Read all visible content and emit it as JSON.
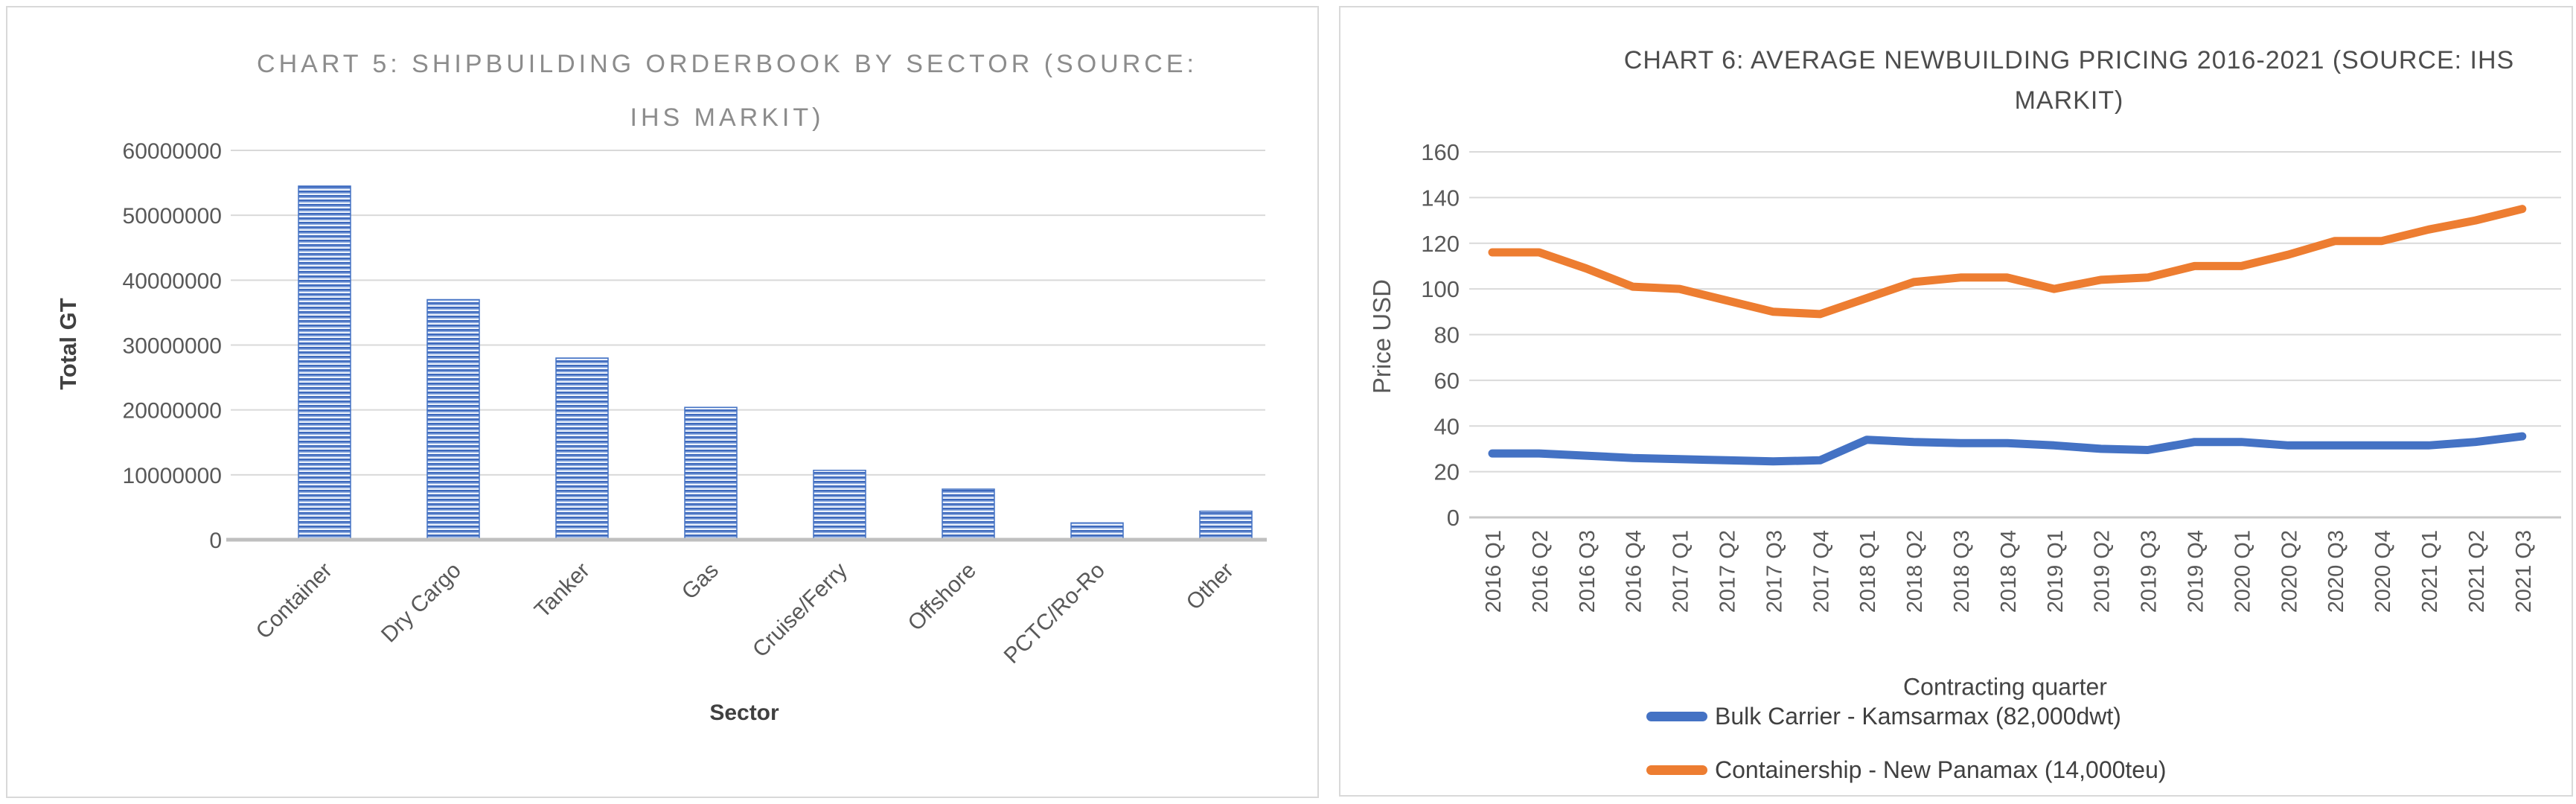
{
  "page": {
    "background": "#ffffff"
  },
  "colors": {
    "bar_fill_blue": "#4472C4",
    "series_blue": "#4472C4",
    "series_orange": "#ED7D31",
    "gridline": "#D9D9D9",
    "axis_line": "#BFBFBF",
    "tick_text": "#595959",
    "axis_title_text": "#404040",
    "chart5_title_text": "#8C8C8C",
    "chart6_title_text": "#4D4D4D",
    "panel_border": "#D9D9D9"
  },
  "chart_data": [
    {
      "id": "chart5",
      "type": "bar",
      "title": "CHART 5: SHIPBUILDING ORDERBOOK BY SECTOR (SOURCE: IHS MARKIT)",
      "title_lines": [
        "CHART 5: SHIPBUILDING ORDERBOOK BY SECTOR (SOURCE:",
        "IHS MARKIT)"
      ],
      "xlabel": "Sector",
      "ylabel": "Total GT",
      "categories": [
        "Container",
        "Dry Cargo",
        "Tanker",
        "Gas",
        "Cruise/Ferry",
        "Offshore",
        "PCTC/Ro-Ro",
        "Other"
      ],
      "values": [
        54500000,
        37000000,
        28000000,
        20400000,
        10700000,
        7800000,
        2600000,
        4400000
      ],
      "ylim": [
        0,
        60000000
      ],
      "ytick_step": 10000000,
      "ytick_labels": [
        "0",
        "10000000",
        "20000000",
        "30000000",
        "40000000",
        "50000000",
        "60000000"
      ],
      "grid": true,
      "legend": "none"
    },
    {
      "id": "chart6",
      "type": "line",
      "title": "CHART 6: AVERAGE NEWBUILDING PRICING 2016-2021 (SOURCE: IHS MARKIT)",
      "title_lines": [
        "CHART 6: AVERAGE NEWBUILDING PRICING 2016-2021 (SOURCE: IHS",
        "MARKIT)"
      ],
      "xlabel": "Contracting quarter",
      "ylabel": "Price USD",
      "x": [
        "2016 Q1",
        "2016 Q2",
        "2016 Q3",
        "2016 Q4",
        "2017 Q1",
        "2017 Q2",
        "2017 Q3",
        "2017 Q4",
        "2018 Q1",
        "2018 Q2",
        "2018 Q3",
        "2018 Q4",
        "2019 Q1",
        "2019 Q2",
        "2019 Q3",
        "2019 Q4",
        "2020 Q1",
        "2020 Q2",
        "2020 Q3",
        "2020 Q4",
        "2021 Q1",
        "2021 Q2",
        "2021 Q3"
      ],
      "series": [
        {
          "name": "Bulk Carrier - Kamsarmax (82,000dwt)",
          "color": "#4472C4",
          "values": [
            28,
            28,
            27,
            26,
            25.5,
            25,
            24.5,
            25,
            34,
            33,
            32.5,
            32.5,
            31.5,
            30,
            29.5,
            33,
            33,
            31.5,
            31.5,
            31.5,
            31.5,
            33,
            35.5
          ]
        },
        {
          "name": "Containership - New Panamax (14,000teu)",
          "color": "#ED7D31",
          "values": [
            116,
            116,
            109,
            101,
            100,
            95,
            90,
            89,
            96,
            103,
            105,
            105,
            100,
            104,
            105,
            110,
            110,
            115,
            121,
            121,
            126,
            130,
            135
          ]
        }
      ],
      "ylim": [
        0,
        160
      ],
      "ytick_step": 20,
      "ytick_labels": [
        "0",
        "20",
        "40",
        "60",
        "80",
        "100",
        "120",
        "140",
        "160"
      ],
      "grid": true,
      "legend_position": "bottom"
    }
  ]
}
